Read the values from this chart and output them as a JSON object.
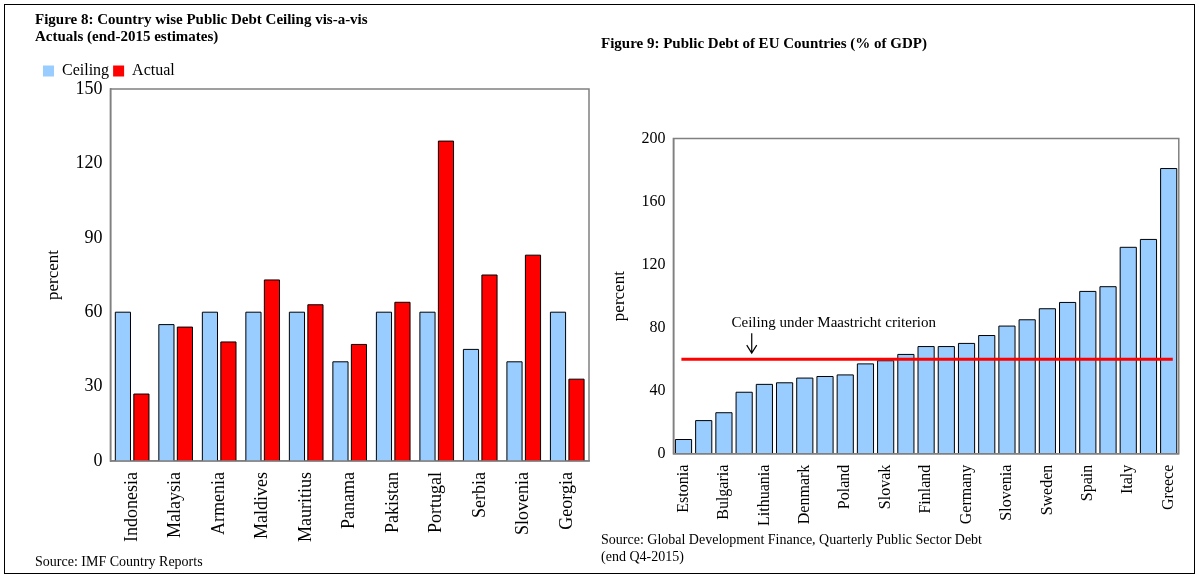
{
  "chart_data": [
    {
      "type": "bar",
      "title": "Figure 8: Country wise Public Debt Ceiling vis-a-vis Actuals (end-2015 estimates)",
      "ylabel": "percent",
      "categories": [
        "Indonesia",
        "Malaysia",
        "Armenia",
        "Maldives",
        "Mauritius",
        "Panama",
        "Pakistan",
        "Portugal",
        "Serbia",
        "Slovenia",
        "Georgia"
      ],
      "series": [
        {
          "name": "Ceiling",
          "color": "#99ccff",
          "values": [
            60,
            55,
            60,
            60,
            60,
            40,
            60,
            60,
            45,
            40,
            60
          ]
        },
        {
          "name": "Actual",
          "color": "#ff0000",
          "values": [
            27,
            54,
            48,
            73,
            63,
            47,
            64,
            129,
            75,
            83,
            33
          ]
        }
      ],
      "ylim": [
        0,
        150
      ],
      "yticks": [
        0,
        30,
        60,
        90,
        120,
        150
      ],
      "legend": "top left",
      "annotations": [
        "Source: IMF Country Reports"
      ]
    },
    {
      "type": "bar",
      "title": "Figure 9: Public Debt of EU Countries (% of GDP)",
      "ylabel": "percent",
      "categories": [
        "Estonia",
        null,
        "Bulgaria",
        null,
        "Lithuania",
        null,
        "Denmark",
        null,
        "Poland",
        null,
        "Slovak",
        null,
        "Finland",
        null,
        "Germany",
        null,
        "Slovenia",
        null,
        "Sweden",
        null,
        "Spain",
        null,
        "Italy",
        null,
        "Greece"
      ],
      "color": "#99ccff",
      "values": [
        9,
        21,
        26,
        39,
        44,
        45,
        48,
        49,
        50,
        57,
        59,
        63,
        68,
        68,
        70,
        75,
        81,
        85,
        92,
        96,
        103,
        106,
        131,
        136,
        181
      ],
      "ylim": [
        0,
        200
      ],
      "yticks": [
        0,
        40,
        80,
        120,
        160,
        200
      ],
      "ref_lines": [
        {
          "axis": "y",
          "value": 60,
          "label": "Ceiling under Maastricht criterion",
          "color": "#ff0000"
        }
      ],
      "annotations": [
        "Source: Global Development Finance, Quarterly Public Sector Debt  (end Q4-2015)"
      ]
    }
  ]
}
